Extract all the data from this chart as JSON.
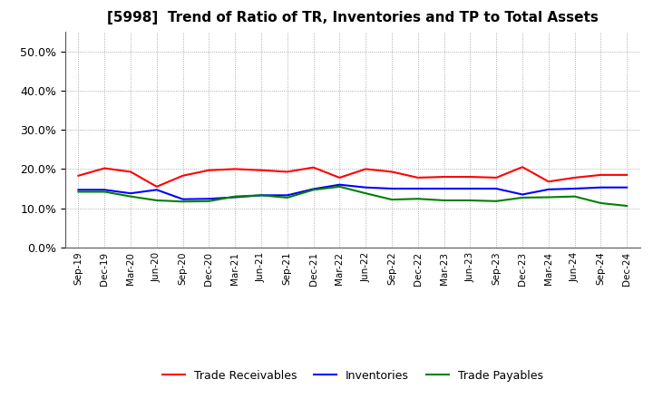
{
  "title": "[5998]  Trend of Ratio of TR, Inventories and TP to Total Assets",
  "x_labels": [
    "Sep-19",
    "Dec-19",
    "Mar-20",
    "Jun-20",
    "Sep-20",
    "Dec-20",
    "Mar-21",
    "Jun-21",
    "Sep-21",
    "Dec-21",
    "Mar-22",
    "Jun-22",
    "Sep-22",
    "Dec-22",
    "Mar-23",
    "Jun-23",
    "Sep-23",
    "Dec-23",
    "Mar-24",
    "Jun-24",
    "Sep-24",
    "Dec-24"
  ],
  "trade_receivables": [
    0.183,
    0.202,
    0.193,
    0.155,
    0.183,
    0.197,
    0.2,
    0.197,
    0.193,
    0.204,
    0.178,
    0.2,
    0.193,
    0.178,
    0.18,
    0.18,
    0.178,
    0.205,
    0.168,
    0.178,
    0.185,
    0.185
  ],
  "inventories": [
    0.147,
    0.147,
    0.138,
    0.147,
    0.123,
    0.124,
    0.128,
    0.133,
    0.133,
    0.149,
    0.16,
    0.153,
    0.15,
    0.15,
    0.15,
    0.15,
    0.15,
    0.135,
    0.148,
    0.15,
    0.153,
    0.153
  ],
  "trade_payables": [
    0.142,
    0.142,
    0.13,
    0.12,
    0.117,
    0.118,
    0.13,
    0.133,
    0.127,
    0.147,
    0.155,
    0.138,
    0.122,
    0.124,
    0.12,
    0.12,
    0.118,
    0.127,
    0.128,
    0.13,
    0.113,
    0.106
  ],
  "tr_color": "#FF0000",
  "inv_color": "#0000FF",
  "tp_color": "#008000",
  "ylim": [
    0.0,
    0.55
  ],
  "yticks": [
    0.0,
    0.1,
    0.2,
    0.3,
    0.4,
    0.5
  ],
  "background_color": "#FFFFFF",
  "grid_color": "#999999"
}
